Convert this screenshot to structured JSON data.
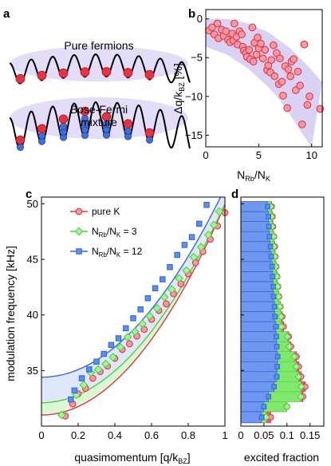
{
  "colors": {
    "red": "#e8333f",
    "red_fill": "#f59aa6",
    "green": "#4bd43a",
    "green_fill": "#a6f59b",
    "blue": "#3366e8",
    "blue_fill": "#5b8ff0",
    "lavender": "#d9d2f5",
    "lattice_glow": "#c9c0ee"
  },
  "panel_a": {
    "label": "a",
    "text_pure": "Pure fermions",
    "text_mix1": "Bose-Fermi",
    "text_mix2": "mixture"
  },
  "panel_labels": {
    "b": "b",
    "c": "c",
    "d": "d"
  },
  "chart_data": [
    {
      "id": "b",
      "type": "scatter",
      "ylabel": "Δq/k",
      "ylabel_sub": "BZ",
      "ylabel_unit": " [%]",
      "xlabel": "N",
      "xlabel_sub1": "Rb",
      "xlabel_mid": "/N",
      "xlabel_sub2": "K",
      "xlim": [
        0,
        11
      ],
      "ylim": [
        -16.5,
        1.2
      ],
      "xticks": [
        0,
        5,
        10
      ],
      "yticks": [
        0,
        -5,
        -10,
        -15
      ],
      "points": [
        [
          0.3,
          -1.5
        ],
        [
          0.6,
          -1.1
        ],
        [
          0.8,
          -2.0
        ],
        [
          1.1,
          -0.6
        ],
        [
          1.2,
          -2.5
        ],
        [
          1.5,
          -1.4
        ],
        [
          1.7,
          -2.2
        ],
        [
          1.9,
          -1.6
        ],
        [
          2.1,
          -2.7
        ],
        [
          2.3,
          -3.0
        ],
        [
          2.5,
          -1.9
        ],
        [
          2.6,
          -2.8
        ],
        [
          2.7,
          -0.6
        ],
        [
          2.9,
          -2.3
        ],
        [
          3.0,
          -3.3
        ],
        [
          3.2,
          -1.6
        ],
        [
          3.4,
          -2.0
        ],
        [
          3.5,
          -3.6
        ],
        [
          3.6,
          -4.1
        ],
        [
          3.8,
          -4.4
        ],
        [
          3.9,
          -4.9
        ],
        [
          4.1,
          -4.0
        ],
        [
          4.2,
          -5.2
        ],
        [
          4.4,
          -1.1
        ],
        [
          4.5,
          -5.5
        ],
        [
          4.6,
          -3.1
        ],
        [
          4.8,
          -4.6
        ],
        [
          4.9,
          -2.4
        ],
        [
          5.0,
          -3.8
        ],
        [
          5.2,
          -3.2
        ],
        [
          5.4,
          -5.1
        ],
        [
          5.6,
          -4.0
        ],
        [
          5.8,
          -6.6
        ],
        [
          5.9,
          -6.0
        ],
        [
          6.1,
          -6.9
        ],
        [
          6.2,
          -5.3
        ],
        [
          6.4,
          -3.4
        ],
        [
          6.5,
          -7.4
        ],
        [
          6.7,
          -4.4
        ],
        [
          6.9,
          -8.4
        ],
        [
          7.0,
          -5.1
        ],
        [
          7.2,
          -8.1
        ],
        [
          7.3,
          -9.9
        ],
        [
          7.5,
          -6.1
        ],
        [
          7.7,
          -11.5
        ],
        [
          7.8,
          -6.5
        ],
        [
          8.0,
          -7.4
        ],
        [
          8.1,
          -5.5
        ],
        [
          8.3,
          -5.2
        ],
        [
          8.5,
          -9.2
        ],
        [
          8.7,
          -6.8
        ],
        [
          8.9,
          -8.6
        ],
        [
          9.1,
          -13.6
        ],
        [
          9.3,
          -3.3
        ],
        [
          9.6,
          -11.1
        ],
        [
          9.8,
          -10.0
        ],
        [
          10.8,
          -11.6
        ]
      ],
      "band_upper": [
        [
          0,
          0
        ],
        [
          2,
          0
        ],
        [
          4,
          -0.6
        ],
        [
          6,
          -1.8
        ],
        [
          8,
          -3.8
        ],
        [
          9,
          -5.2
        ],
        [
          10,
          -6.6
        ],
        [
          11,
          -8.2
        ]
      ],
      "band_lower": [
        [
          0,
          -3.6
        ],
        [
          2,
          -4.6
        ],
        [
          4,
          -6.4
        ],
        [
          6,
          -8.9
        ],
        [
          7,
          -10.5
        ],
        [
          8,
          -12.4
        ],
        [
          9,
          -14.6
        ],
        [
          10,
          -16.5
        ]
      ]
    },
    {
      "id": "c",
      "type": "line",
      "xlabel": "quasimomentum [q/k",
      "xlabel_sub": "BZ",
      "xlabel_end": "]",
      "ylabel": "modulation frequency [kHz]",
      "xlim": [
        0,
        1
      ],
      "ylim": [
        30,
        50.6
      ],
      "xticks": [
        0,
        0.2,
        0.4,
        0.6,
        0.8,
        1
      ],
      "xtick_labels": [
        "0",
        "0.2",
        "0.4",
        "0.6",
        "0.8",
        "1"
      ],
      "yticks": [
        35,
        40,
        45,
        50
      ],
      "legend": [
        {
          "label": "pure K",
          "marker": "circle",
          "color_key": "red"
        },
        {
          "label_pre": "N",
          "label_sub1": "Rb",
          "label_mid": "/N",
          "label_sub2": "K",
          "label_end": " = 3",
          "marker": "diamond",
          "color_key": "green"
        },
        {
          "label_pre": "N",
          "label_sub1": "Rb",
          "label_mid": "/N",
          "label_sub2": "K",
          "label_end": " = 12",
          "marker": "square",
          "color_key": "blue"
        }
      ],
      "series": [
        {
          "name": "pure K",
          "marker": "circle",
          "color_key": "red",
          "curve": {
            "a": 31.0,
            "b": 18.9
          },
          "points": [
            [
              0.13,
              30.9
            ],
            [
              0.17,
              32.0
            ],
            [
              0.2,
              32.9
            ],
            [
              0.24,
              33.4
            ],
            [
              0.28,
              34.3
            ],
            [
              0.32,
              34.9
            ],
            [
              0.36,
              35.4
            ],
            [
              0.4,
              36.1
            ],
            [
              0.44,
              36.9
            ],
            [
              0.48,
              37.4
            ],
            [
              0.52,
              38.1
            ],
            [
              0.56,
              38.7
            ],
            [
              0.6,
              39.6
            ],
            [
              0.64,
              40.4
            ],
            [
              0.68,
              41.0
            ],
            [
              0.72,
              41.9
            ],
            [
              0.76,
              42.8
            ],
            [
              0.8,
              43.7
            ],
            [
              0.84,
              44.7
            ],
            [
              0.88,
              45.7
            ],
            [
              0.92,
              46.8
            ],
            [
              0.96,
              48.0
            ],
            [
              1.0,
              49.2
            ]
          ]
        },
        {
          "name": "N_Rb/N_K = 3",
          "marker": "diamond",
          "color_key": "green",
          "curve": {
            "a": 32.1,
            "b": 17.9
          },
          "points": [
            [
              0.11,
              31.0
            ],
            [
              0.19,
              32.8
            ],
            [
              0.23,
              33.7
            ],
            [
              0.27,
              34.8
            ],
            [
              0.31,
              35.1
            ],
            [
              0.35,
              35.6
            ],
            [
              0.39,
              36.2
            ],
            [
              0.43,
              37.1
            ],
            [
              0.47,
              38.0
            ],
            [
              0.51,
              38.5
            ],
            [
              0.55,
              39.2
            ],
            [
              0.59,
              39.9
            ],
            [
              0.63,
              40.6
            ],
            [
              0.67,
              41.6
            ],
            [
              0.71,
              42.3
            ],
            [
              0.75,
              43.3
            ],
            [
              0.79,
              44.0
            ],
            [
              0.83,
              45.2
            ],
            [
              0.87,
              46.1
            ],
            [
              0.91,
              47.2
            ],
            [
              0.94,
              48.1
            ],
            [
              0.97,
              49.3
            ]
          ]
        },
        {
          "name": "N_Rb/N_K = 12",
          "marker": "square",
          "color_key": "blue",
          "curve": {
            "a": 34.4,
            "b": 17.0
          },
          "points": [
            [
              0.16,
              32.4
            ],
            [
              0.18,
              33.2
            ],
            [
              0.22,
              34.3
            ],
            [
              0.26,
              35.1
            ],
            [
              0.3,
              35.8
            ],
            [
              0.34,
              36.5
            ],
            [
              0.38,
              37.3
            ],
            [
              0.42,
              37.9
            ],
            [
              0.46,
              38.8
            ],
            [
              0.5,
              39.7
            ],
            [
              0.54,
              40.5
            ],
            [
              0.58,
              41.5
            ],
            [
              0.62,
              42.4
            ],
            [
              0.66,
              43.2
            ],
            [
              0.7,
              44.3
            ],
            [
              0.74,
              45.4
            ],
            [
              0.78,
              46.3
            ],
            [
              0.82,
              47.0
            ],
            [
              0.86,
              48.2
            ],
            [
              0.9,
              49.9
            ]
          ]
        }
      ]
    },
    {
      "id": "d",
      "type": "bar",
      "orientation": "horizontal",
      "xlabel": "excited fraction",
      "xlim": [
        0,
        0.18
      ],
      "xticks": [
        0,
        0.05,
        0.1,
        0.15
      ],
      "xtick_labels": [
        "0",
        "0.05",
        "0.1",
        "0.15"
      ],
      "ylim": [
        30,
        50.6
      ],
      "bin_edges": [
        30.3,
        31.3,
        32.2,
        33.1,
        34.0,
        34.9,
        35.8,
        36.7,
        37.6,
        38.5,
        39.4,
        40.3,
        41.2,
        42.1,
        43.0,
        43.9,
        44.8,
        45.7,
        46.6,
        47.5,
        48.4,
        49.3,
        50.2
      ],
      "series": [
        {
          "name": "pure K",
          "marker": "circle",
          "color_key": "red",
          "values": [
            0.065,
            0.1,
            0.135,
            0.14,
            0.131,
            0.126,
            0.121,
            0.109,
            0.104,
            0.093,
            0.09,
            0.086,
            0.083,
            0.081,
            0.079,
            0.077,
            0.075,
            0.074,
            0.072,
            0.07,
            0.069,
            0.067
          ]
        },
        {
          "name": "N_Rb/N_K = 3",
          "marker": "diamond",
          "color_key": "green",
          "values": [
            0.055,
            0.1,
            0.13,
            0.131,
            0.125,
            0.12,
            0.116,
            0.105,
            0.101,
            0.088,
            0.087,
            0.085,
            0.082,
            0.08,
            0.078,
            0.076,
            0.074,
            0.072,
            0.071,
            0.068,
            0.067,
            0.065
          ]
        },
        {
          "name": "N_Rb/N_K = 12",
          "marker": "square",
          "color_key": "blue",
          "values": [
            0.045,
            0.05,
            0.06,
            0.072,
            0.078,
            0.079,
            0.08,
            0.078,
            0.077,
            0.076,
            0.074,
            0.073,
            0.071,
            0.07,
            0.069,
            0.068,
            0.066,
            0.064,
            0.062,
            0.061,
            0.06,
            0.058
          ]
        }
      ]
    }
  ]
}
